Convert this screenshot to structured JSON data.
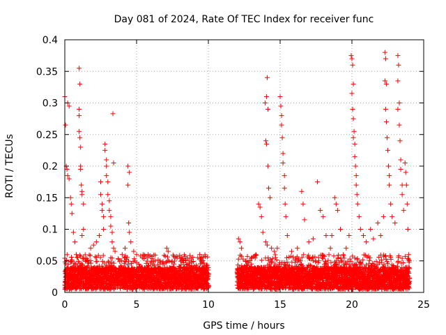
{
  "chart_data": {
    "type": "scatter",
    "title": "Day 081 of 2024, Rate Of TEC Index for receiver func",
    "xlabel": "GPS time / hours",
    "ylabel": "ROTI / TECUs",
    "xlim": [
      0,
      25
    ],
    "ylim": [
      0,
      0.4
    ],
    "x_ticks": [
      0,
      5,
      10,
      15,
      20,
      25
    ],
    "x_tick_labels": [
      "0",
      "5",
      "10",
      "15",
      "20",
      "25"
    ],
    "y_ticks": [
      0,
      0.05,
      0.1,
      0.15,
      0.2,
      0.25,
      0.3,
      0.35,
      0.4
    ],
    "y_tick_labels": [
      "0",
      "0.05",
      "0.1",
      "0.15",
      "0.2",
      "0.25",
      "0.3",
      "0.35",
      "0.4"
    ],
    "grid": true,
    "marker": "+",
    "marker_color": "#ff0000",
    "data_gap_hours": [
      10,
      12
    ],
    "series": [
      {
        "points": [
          [
            0.0,
            0.31
          ],
          [
            0.05,
            0.265
          ],
          [
            0.1,
            0.2
          ],
          [
            0.15,
            0.195
          ],
          [
            0.2,
            0.3
          ],
          [
            0.3,
            0.295
          ],
          [
            0.2,
            0.185
          ],
          [
            0.3,
            0.18
          ],
          [
            0.4,
            0.15
          ],
          [
            0.45,
            0.14
          ],
          [
            0.5,
            0.125
          ],
          [
            0.6,
            0.095
          ],
          [
            0.7,
            0.08
          ],
          [
            0.8,
            0.06
          ],
          [
            0.9,
            0.055
          ],
          [
            1.0,
            0.355
          ],
          [
            1.05,
            0.33
          ],
          [
            1.0,
            0.29
          ],
          [
            1.0,
            0.28
          ],
          [
            1.0,
            0.255
          ],
          [
            1.05,
            0.245
          ],
          [
            1.1,
            0.23
          ],
          [
            1.1,
            0.2
          ],
          [
            1.1,
            0.195
          ],
          [
            1.15,
            0.17
          ],
          [
            1.2,
            0.16
          ],
          [
            1.2,
            0.155
          ],
          [
            1.3,
            0.14
          ],
          [
            1.3,
            0.1
          ],
          [
            1.2,
            0.09
          ],
          [
            1.8,
            0.07
          ],
          [
            2.0,
            0.075
          ],
          [
            2.2,
            0.08
          ],
          [
            2.4,
            0.09
          ],
          [
            2.5,
            0.175
          ],
          [
            2.5,
            0.155
          ],
          [
            2.6,
            0.14
          ],
          [
            2.6,
            0.13
          ],
          [
            2.7,
            0.12
          ],
          [
            2.7,
            0.1
          ],
          [
            2.8,
            0.235
          ],
          [
            2.8,
            0.225
          ],
          [
            2.9,
            0.21
          ],
          [
            2.9,
            0.2
          ],
          [
            2.9,
            0.185
          ],
          [
            3.0,
            0.175
          ],
          [
            3.0,
            0.155
          ],
          [
            3.1,
            0.145
          ],
          [
            3.1,
            0.13
          ],
          [
            3.2,
            0.12
          ],
          [
            3.2,
            0.105
          ],
          [
            3.3,
            0.095
          ],
          [
            3.3,
            0.08
          ],
          [
            3.4,
            0.07
          ],
          [
            3.5,
            0.065
          ],
          [
            3.35,
            0.283
          ],
          [
            3.4,
            0.205
          ],
          [
            4.0,
            0.06
          ],
          [
            4.2,
            0.07
          ],
          [
            4.4,
            0.2
          ],
          [
            4.5,
            0.19
          ],
          [
            4.4,
            0.17
          ],
          [
            4.45,
            0.11
          ],
          [
            4.5,
            0.095
          ],
          [
            4.6,
            0.08
          ],
          [
            4.8,
            0.065
          ],
          [
            5.0,
            0.06
          ],
          [
            5.4,
            0.055
          ],
          [
            5.8,
            0.06
          ],
          [
            6.3,
            0.05
          ],
          [
            6.8,
            0.045
          ],
          [
            7.1,
            0.07
          ],
          [
            7.2,
            0.065
          ],
          [
            7.6,
            0.045
          ],
          [
            8.0,
            0.04
          ],
          [
            8.4,
            0.05
          ],
          [
            8.8,
            0.04
          ],
          [
            9.2,
            0.035
          ],
          [
            9.6,
            0.03
          ],
          [
            9.9,
            0.025
          ],
          [
            12.1,
            0.085
          ],
          [
            12.2,
            0.08
          ],
          [
            12.3,
            0.07
          ],
          [
            12.5,
            0.04
          ],
          [
            13.0,
            0.045
          ],
          [
            13.3,
            0.06
          ],
          [
            13.5,
            0.14
          ],
          [
            13.6,
            0.135
          ],
          [
            13.7,
            0.12
          ],
          [
            13.8,
            0.095
          ],
          [
            14.0,
            0.08
          ],
          [
            14.1,
            0.075
          ],
          [
            13.95,
            0.3
          ],
          [
            14.05,
            0.31
          ],
          [
            14.1,
            0.34
          ],
          [
            14.15,
            0.29
          ],
          [
            14.0,
            0.24
          ],
          [
            14.05,
            0.235
          ],
          [
            14.15,
            0.2
          ],
          [
            14.2,
            0.165
          ],
          [
            14.3,
            0.15
          ],
          [
            14.4,
            0.07
          ],
          [
            14.6,
            0.065
          ],
          [
            14.8,
            0.07
          ],
          [
            15.0,
            0.31
          ],
          [
            15.05,
            0.295
          ],
          [
            15.1,
            0.28
          ],
          [
            15.1,
            0.265
          ],
          [
            15.15,
            0.245
          ],
          [
            15.2,
            0.22
          ],
          [
            15.2,
            0.205
          ],
          [
            15.3,
            0.185
          ],
          [
            15.3,
            0.165
          ],
          [
            15.35,
            0.14
          ],
          [
            15.4,
            0.12
          ],
          [
            15.5,
            0.09
          ],
          [
            15.8,
            0.065
          ],
          [
            16.2,
            0.07
          ],
          [
            16.5,
            0.16
          ],
          [
            16.6,
            0.14
          ],
          [
            16.7,
            0.115
          ],
          [
            17.0,
            0.08
          ],
          [
            17.3,
            0.085
          ],
          [
            17.6,
            0.175
          ],
          [
            17.8,
            0.13
          ],
          [
            18.0,
            0.12
          ],
          [
            18.2,
            0.09
          ],
          [
            18.5,
            0.07
          ],
          [
            18.6,
            0.09
          ],
          [
            18.8,
            0.15
          ],
          [
            18.9,
            0.14
          ],
          [
            19.0,
            0.13
          ],
          [
            19.2,
            0.1
          ],
          [
            19.4,
            0.06
          ],
          [
            19.6,
            0.07
          ],
          [
            19.8,
            0.09
          ],
          [
            19.95,
            0.375
          ],
          [
            20.0,
            0.37
          ],
          [
            20.05,
            0.36
          ],
          [
            20.1,
            0.33
          ],
          [
            20.0,
            0.315
          ],
          [
            20.05,
            0.29
          ],
          [
            20.1,
            0.275
          ],
          [
            20.15,
            0.255
          ],
          [
            20.1,
            0.245
          ],
          [
            20.2,
            0.235
          ],
          [
            20.2,
            0.215
          ],
          [
            20.25,
            0.2
          ],
          [
            20.3,
            0.185
          ],
          [
            20.3,
            0.17
          ],
          [
            20.35,
            0.155
          ],
          [
            20.4,
            0.14
          ],
          [
            20.5,
            0.12
          ],
          [
            20.6,
            0.1
          ],
          [
            20.8,
            0.09
          ],
          [
            21.0,
            0.08
          ],
          [
            21.3,
            0.1
          ],
          [
            21.5,
            0.085
          ],
          [
            21.8,
            0.11
          ],
          [
            22.0,
            0.09
          ],
          [
            22.2,
            0.12
          ],
          [
            22.3,
            0.38
          ],
          [
            22.35,
            0.37
          ],
          [
            22.3,
            0.335
          ],
          [
            22.4,
            0.33
          ],
          [
            22.35,
            0.29
          ],
          [
            22.4,
            0.27
          ],
          [
            22.45,
            0.245
          ],
          [
            22.5,
            0.225
          ],
          [
            22.55,
            0.2
          ],
          [
            22.6,
            0.185
          ],
          [
            22.6,
            0.17
          ],
          [
            22.7,
            0.14
          ],
          [
            22.8,
            0.12
          ],
          [
            23.0,
            0.11
          ],
          [
            23.2,
            0.375
          ],
          [
            23.25,
            0.36
          ],
          [
            23.2,
            0.335
          ],
          [
            23.3,
            0.3
          ],
          [
            23.2,
            0.29
          ],
          [
            23.3,
            0.265
          ],
          [
            23.35,
            0.24
          ],
          [
            23.4,
            0.21
          ],
          [
            23.4,
            0.195
          ],
          [
            23.5,
            0.17
          ],
          [
            23.5,
            0.155
          ],
          [
            23.6,
            0.13
          ],
          [
            23.7,
            0.205
          ],
          [
            23.75,
            0.19
          ],
          [
            23.8,
            0.17
          ],
          [
            23.85,
            0.14
          ],
          [
            23.9,
            0.1
          ],
          [
            23.95,
            0.06
          ],
          [
            24.0,
            0.05
          ]
        ]
      }
    ],
    "baseline_band": {
      "segments": [
        [
          0,
          10
        ],
        [
          12,
          24
        ]
      ],
      "y_range": [
        0.005,
        0.04
      ]
    }
  }
}
